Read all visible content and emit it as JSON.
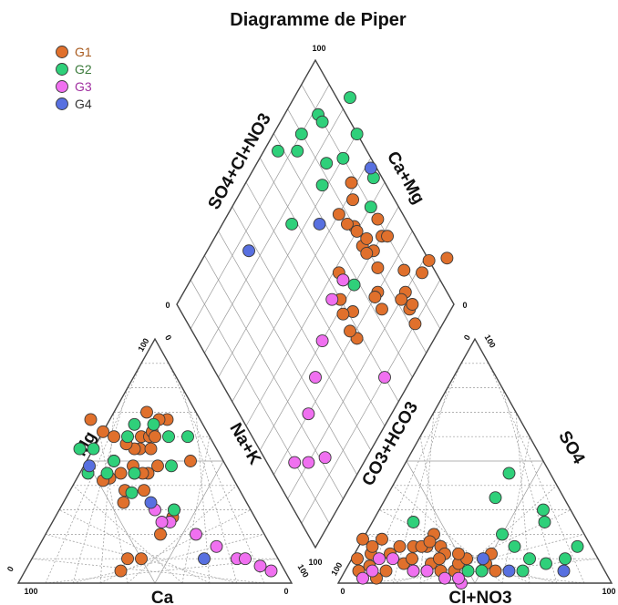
{
  "chart_data": {
    "type": "scatter",
    "subtype": "piper-diagram",
    "title": "Diagramme de Piper",
    "axis_labels": {
      "cation_bottom": "Ca",
      "cation_left": "Mg",
      "cation_right": "Na+K",
      "anion_bottom": "Cl+NO3",
      "anion_left": "CO3+HCO3",
      "anion_right": "SO4",
      "diamond_left": "SO4+Cl+NO3",
      "diamond_right": "Ca+Mg"
    },
    "ticks": {
      "min": "0",
      "max": "100"
    },
    "legend": {
      "placement": "top-left",
      "entries": [
        {
          "name": "G1",
          "color": "#e0702c",
          "text_color": "#a85a1e"
        },
        {
          "name": "G2",
          "color": "#2fd07a",
          "text_color": "#3b7a3b"
        },
        {
          "name": "G3",
          "color": "#f070f0",
          "text_color": "#a030a0"
        },
        {
          "name": "G4",
          "color": "#5870e0",
          "text_color": "#333333"
        }
      ]
    },
    "series": [
      {
        "name": "G1",
        "color": "#e0702c",
        "cation": [
          [
            25,
            60
          ],
          [
            28,
            55
          ],
          [
            22,
            60
          ],
          [
            30,
            55
          ],
          [
            32,
            57
          ],
          [
            35,
            60
          ],
          [
            40,
            67
          ],
          [
            38,
            62
          ],
          [
            20,
            62
          ],
          [
            25,
            48
          ],
          [
            30,
            45
          ],
          [
            35,
            45
          ],
          [
            34,
            48
          ],
          [
            40,
            50
          ],
          [
            12,
            67
          ],
          [
            15,
            67
          ],
          [
            18,
            70
          ],
          [
            12,
            50
          ],
          [
            35,
            38
          ],
          [
            28,
            30
          ],
          [
            30,
            27
          ],
          [
            38,
            20
          ],
          [
            50,
            10
          ],
          [
            60,
            5
          ],
          [
            55,
            10
          ],
          [
            42,
            38
          ],
          [
            45,
            33
          ],
          [
            32,
            45
          ],
          [
            40,
            45
          ],
          [
            45,
            43
          ],
          [
            48,
            42
          ],
          [
            24,
            55
          ],
          [
            20,
            60
          ]
        ],
        "anion": [
          [
            80,
            5
          ],
          [
            85,
            7
          ],
          [
            90,
            5
          ],
          [
            85,
            2
          ],
          [
            75,
            12
          ],
          [
            82,
            12
          ],
          [
            88,
            10
          ],
          [
            82,
            18
          ],
          [
            80,
            15
          ],
          [
            75,
            18
          ],
          [
            70,
            15
          ],
          [
            65,
            15
          ],
          [
            60,
            15
          ],
          [
            55,
            15
          ],
          [
            55,
            12
          ],
          [
            55,
            5
          ],
          [
            60,
            5
          ],
          [
            65,
            5
          ],
          [
            70,
            5
          ],
          [
            72,
            8
          ],
          [
            68,
            10
          ],
          [
            62,
            8
          ],
          [
            58,
            10
          ],
          [
            52,
            8
          ],
          [
            55,
            20
          ],
          [
            48,
            10
          ],
          [
            45,
            5
          ],
          [
            40,
            5
          ],
          [
            42,
            8
          ],
          [
            38,
            12
          ],
          [
            62,
            15
          ],
          [
            58,
            17
          ],
          [
            50,
            12
          ]
        ]
      },
      {
        "name": "G2",
        "color": "#2fd07a",
        "cation": [
          [
            8,
            60
          ],
          [
            35,
            45
          ],
          [
            40,
            50
          ],
          [
            45,
            55
          ],
          [
            30,
            60
          ],
          [
            25,
            65
          ],
          [
            15,
            60
          ],
          [
            20,
            48
          ],
          [
            28,
            30
          ],
          [
            40,
            37
          ],
          [
            50,
            55
          ],
          [
            45,
            45
          ],
          [
            18,
            65
          ],
          [
            52,
            45
          ]
        ],
        "anion": [
          [
            60,
            25
          ],
          [
            10,
            30
          ],
          [
            12,
            25
          ],
          [
            30,
            20
          ],
          [
            15,
            45
          ],
          [
            30,
            5
          ],
          [
            12,
            10
          ],
          [
            5,
            15
          ],
          [
            25,
            10
          ],
          [
            28,
            15
          ],
          [
            20,
            8
          ],
          [
            50,
            5
          ],
          [
            25,
            35
          ],
          [
            45,
            5
          ]
        ]
      },
      {
        "name": "G3",
        "color": "#f070f0",
        "cation": [
          [
            35,
            30
          ],
          [
            32,
            25
          ],
          [
            25,
            20
          ],
          [
            20,
            15
          ],
          [
            15,
            10
          ],
          [
            5,
            5
          ],
          [
            8,
            7
          ],
          [
            12,
            10
          ],
          [
            35,
            25
          ]
        ],
        "anion": [
          [
            55,
            0
          ],
          [
            55,
            2
          ],
          [
            60,
            2
          ],
          [
            65,
            5
          ],
          [
            70,
            5
          ],
          [
            75,
            10
          ],
          [
            80,
            10
          ],
          [
            85,
            5
          ],
          [
            90,
            2
          ]
        ]
      },
      {
        "name": "G4",
        "color": "#5870e0",
        "cation": [
          [
            27,
            10
          ],
          [
            35,
            33
          ],
          [
            50,
            48
          ]
        ],
        "anion": [
          [
            15,
            5
          ],
          [
            35,
            5
          ],
          [
            42,
            10
          ]
        ]
      }
    ]
  }
}
